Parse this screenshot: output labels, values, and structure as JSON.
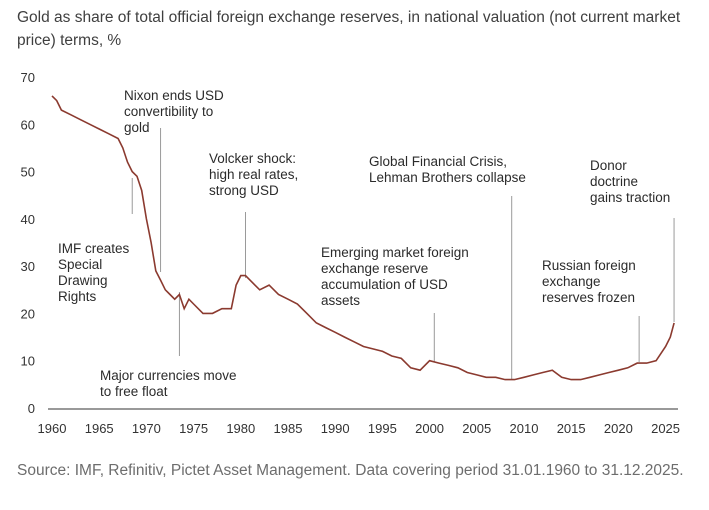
{
  "header": {
    "title": "Gold as share of total official foreign exchange reserves, in national valuation (not current market price) terms, %"
  },
  "footer": {
    "source": "Source: IMF, Refinitiv, Pictet Asset Management. Data covering period 31.01.1960 to 31.12.2025."
  },
  "colors": {
    "line": "#8b3a2f",
    "annotation_line": "#9a9a9a",
    "axis": "#333333"
  },
  "chart_data": {
    "type": "line",
    "title": "Gold as share of total official foreign exchange reserves, in national valuation (not current market price) terms, %",
    "xlabel": "",
    "ylabel": "",
    "xlim": [
      1960,
      2026
    ],
    "ylim": [
      0,
      70
    ],
    "grid": false,
    "x_ticks": [
      "1960",
      "1965",
      "1970",
      "1975",
      "1980",
      "1985",
      "1990",
      "1995",
      "2000",
      "2005",
      "2010",
      "2015",
      "2020",
      "2025"
    ],
    "y_ticks": [
      "0",
      "10",
      "20",
      "30",
      "40",
      "50",
      "60",
      "70"
    ],
    "series": [
      {
        "name": "",
        "x": [
          1960,
          1960.5,
          1961,
          1962,
          1963,
          1964,
          1965,
          1966,
          1967,
          1967.5,
          1968,
          1968.5,
          1969,
          1969.5,
          1970,
          1970.5,
          1971,
          1971.5,
          1972,
          1972.5,
          1973,
          1973.5,
          1974,
          1974.5,
          1975,
          1976,
          1977,
          1978,
          1979,
          1979.5,
          1980,
          1980.5,
          1981,
          1981.5,
          1982,
          1983,
          1984,
          1985,
          1986,
          1987,
          1988,
          1989,
          1990,
          1991,
          1992,
          1993,
          1994,
          1995,
          1996,
          1997,
          1998,
          1999,
          2000,
          2001,
          2002,
          2003,
          2004,
          2005,
          2006,
          2007,
          2008,
          2009,
          2010,
          2011,
          2012,
          2013,
          2014,
          2015,
          2016,
          2017,
          2018,
          2019,
          2020,
          2021,
          2022,
          2023,
          2024,
          2025,
          2025.5,
          2025.9
        ],
        "y": [
          66,
          65,
          63,
          62,
          61,
          60,
          59,
          58,
          57,
          55,
          52,
          50,
          49,
          46,
          40,
          35,
          29,
          27,
          25,
          24,
          23,
          24,
          21,
          23,
          22,
          20,
          20,
          21,
          21,
          26,
          28,
          28,
          27,
          26,
          25,
          26,
          24,
          23,
          22,
          20,
          18,
          17,
          16,
          15,
          14,
          13,
          12.5,
          12,
          11,
          10.5,
          8.5,
          8,
          10,
          9.5,
          9,
          8.5,
          7.5,
          7,
          6.5,
          6.5,
          6,
          6,
          6.5,
          7,
          7.5,
          8,
          6.5,
          6,
          6,
          6.5,
          7,
          7.5,
          8,
          8.5,
          9.5,
          9.5,
          10,
          13,
          15,
          18
        ]
      }
    ],
    "annotations": [
      {
        "x": 1968.5,
        "text": [
          "IMF creates",
          "Special",
          "Drawing",
          "Rights"
        ]
      },
      {
        "x": 1971.5,
        "text": [
          "Nixon ends USD",
          "convertibility to",
          "gold"
        ]
      },
      {
        "x": 1973.5,
        "text": [
          "Major currencies move",
          "to free float"
        ]
      },
      {
        "x": 1980.5,
        "text": [
          "Volcker shock:",
          "high real rates,",
          "strong USD"
        ]
      },
      {
        "x": 2000.5,
        "text": [
          "Emerging market foreign",
          "exchange reserve",
          "accumulation of USD",
          "assets"
        ]
      },
      {
        "x": 2008.7,
        "text": [
          "Global Financial Crisis,",
          "Lehman Brothers collapse"
        ]
      },
      {
        "x": 2022.2,
        "text": [
          "Russian foreign",
          "exchange",
          "reserves frozen"
        ]
      },
      {
        "x": 2025.9,
        "text": [
          "Donor",
          "doctrine",
          "gains traction"
        ]
      }
    ]
  }
}
